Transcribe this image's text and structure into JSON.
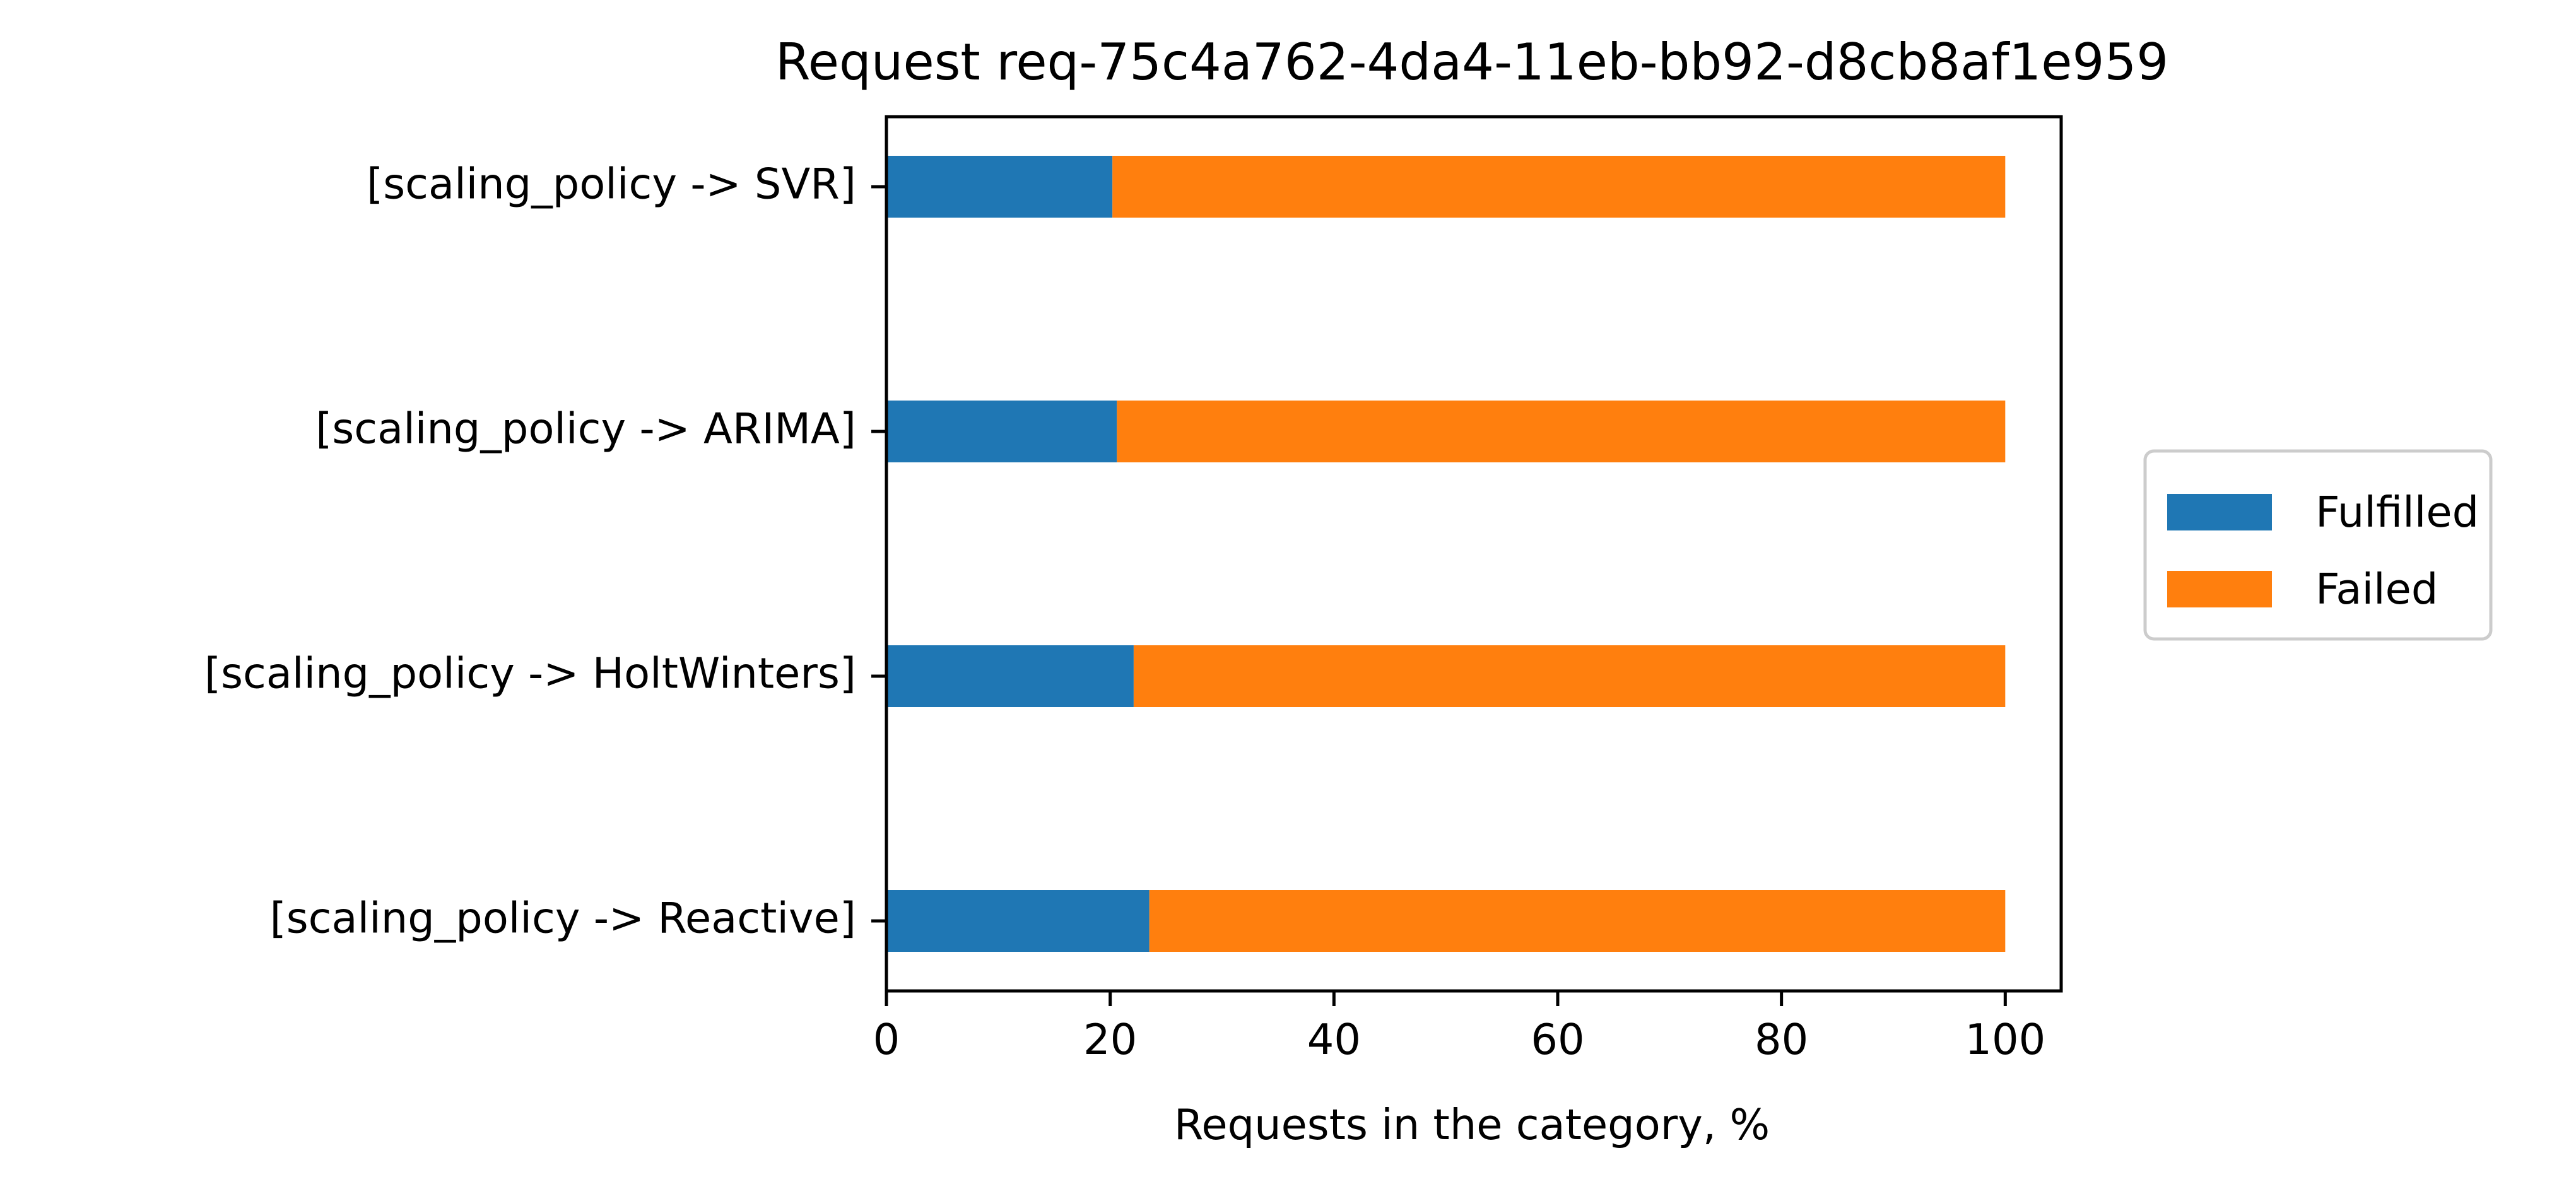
{
  "chart_data": {
    "type": "bar",
    "orientation": "horizontal",
    "stacked": true,
    "title": "Request req-75c4a762-4da4-11eb-bb92-d8cb8af1e959",
    "xlabel": "Requests in the category, %",
    "ylabel": "",
    "xlim": [
      0,
      105
    ],
    "xticks": [
      "0",
      "20",
      "40",
      "60",
      "80",
      "100"
    ],
    "categories": [
      "[scaling_policy -> SVR]",
      "[scaling_policy -> ARIMA]",
      "[scaling_policy -> HoltWinters]",
      "[scaling_policy -> Reactive]"
    ],
    "series": [
      {
        "name": "Fulfilled",
        "color": "#1f77b4",
        "values": [
          20.2,
          20.6,
          22.1,
          23.5
        ]
      },
      {
        "name": "Failed",
        "color": "#ff7f0e",
        "values": [
          79.8,
          79.4,
          77.9,
          76.5
        ]
      }
    ],
    "grid": false,
    "legend": "center-right, outside plot"
  }
}
